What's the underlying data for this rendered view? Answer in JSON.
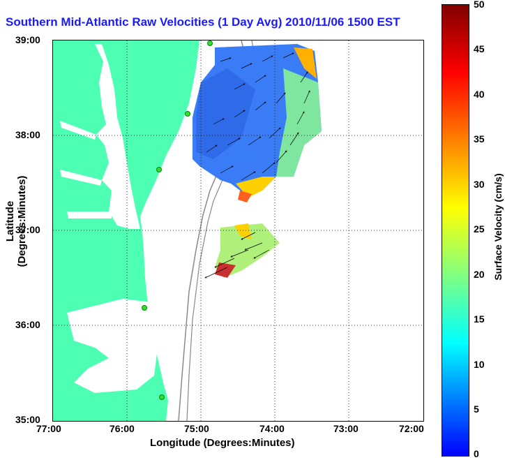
{
  "title": "Southern Mid-Atlantic Raw Velocities (1 Day Avg) 2010/11/06 1500 EST",
  "x_axis": {
    "label": "Longitude (Degrees:Minutes)",
    "ticks": [
      "77:00",
      "76:00",
      "75:00",
      "74:00",
      "73:00",
      "72:00"
    ]
  },
  "y_axis": {
    "label": "Latitude (Degrees:Minutes)",
    "ticks": [
      "39:00",
      "38:00",
      "37:00",
      "36:00",
      "35:00"
    ]
  },
  "colorbar": {
    "label": "Surface Velocity (cm/s)",
    "ticks": [
      "50",
      "45",
      "40",
      "35",
      "30",
      "25",
      "20",
      "15",
      "10",
      "5",
      "0"
    ],
    "colors": [
      "#0000ff",
      "#00ffff",
      "#ffff00",
      "#ff0000",
      "#800000"
    ]
  },
  "colors": {
    "land": "#4dffb3",
    "bay_water": "#ffffff",
    "station_marker": "#33dd33",
    "isobath": "#888888"
  }
}
